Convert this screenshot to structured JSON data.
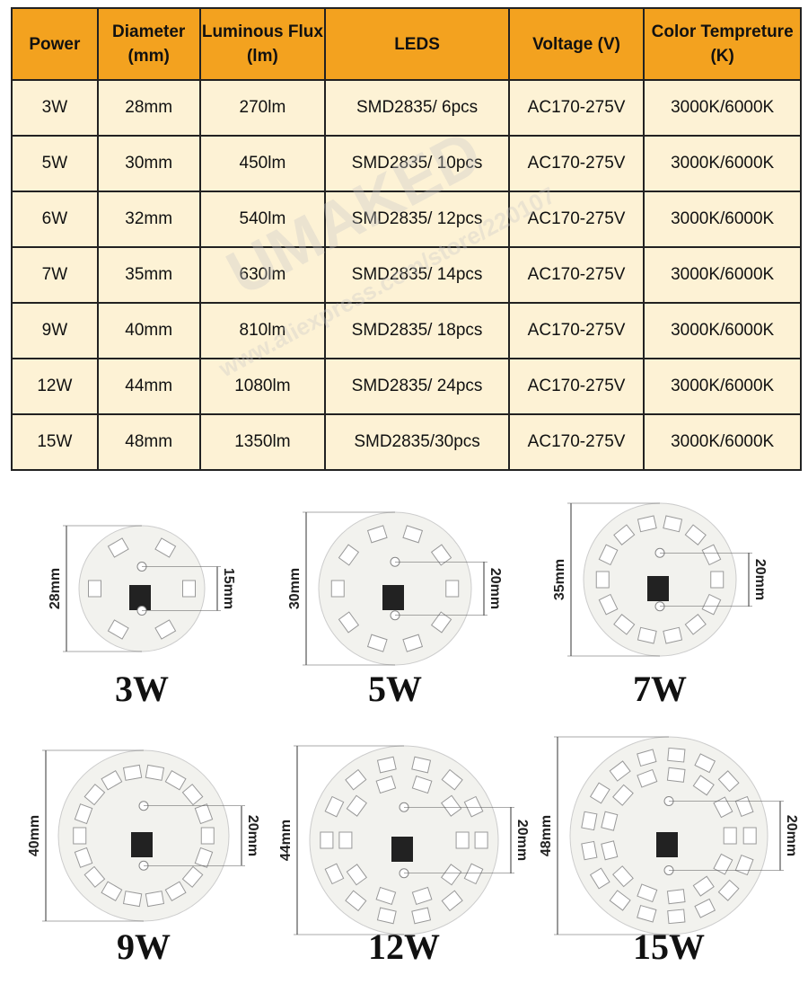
{
  "table": {
    "header": [
      "Power",
      "Diameter (mm)",
      "Luminous Flux (lm)",
      "LEDS",
      "Voltage (V)",
      "Color Tempreture (K)"
    ],
    "rows": [
      [
        "3W",
        "28mm",
        "270lm",
        "SMD2835/ 6pcs",
        "AC170-275V",
        "3000K/6000K"
      ],
      [
        "5W",
        "30mm",
        "450lm",
        "SMD2835/ 10pcs",
        "AC170-275V",
        "3000K/6000K"
      ],
      [
        "6W",
        "32mm",
        "540lm",
        "SMD2835/ 12pcs",
        "AC170-275V",
        "3000K/6000K"
      ],
      [
        "7W",
        "35mm",
        "630lm",
        "SMD2835/ 14pcs",
        "AC170-275V",
        "3000K/6000K"
      ],
      [
        "9W",
        "40mm",
        "810lm",
        "SMD2835/ 18pcs",
        "AC170-275V",
        "3000K/6000K"
      ],
      [
        "12W",
        "44mm",
        "1080lm",
        "SMD2835/ 24pcs",
        "AC170-275V",
        "3000K/6000K"
      ],
      [
        "15W",
        "48mm",
        "1350lm",
        "SMD2835/30pcs",
        "AC170-275V",
        "3000K/6000K"
      ]
    ]
  },
  "watermark": [
    "UMAKED",
    "www.aliexpress.com/store/220107"
  ],
  "boards": [
    {
      "label": "3W",
      "diameter": "28mm",
      "hole": "15mm"
    },
    {
      "label": "5W",
      "diameter": "30mm",
      "hole": "20mm"
    },
    {
      "label": "7W",
      "diameter": "35mm",
      "hole": "20mm"
    },
    {
      "label": "9W",
      "diameter": "40mm",
      "hole": "20mm"
    },
    {
      "label": "12W",
      "diameter": "44mm",
      "hole": "20mm"
    },
    {
      "label": "15W",
      "diameter": "48mm",
      "hole": "20mm"
    }
  ]
}
